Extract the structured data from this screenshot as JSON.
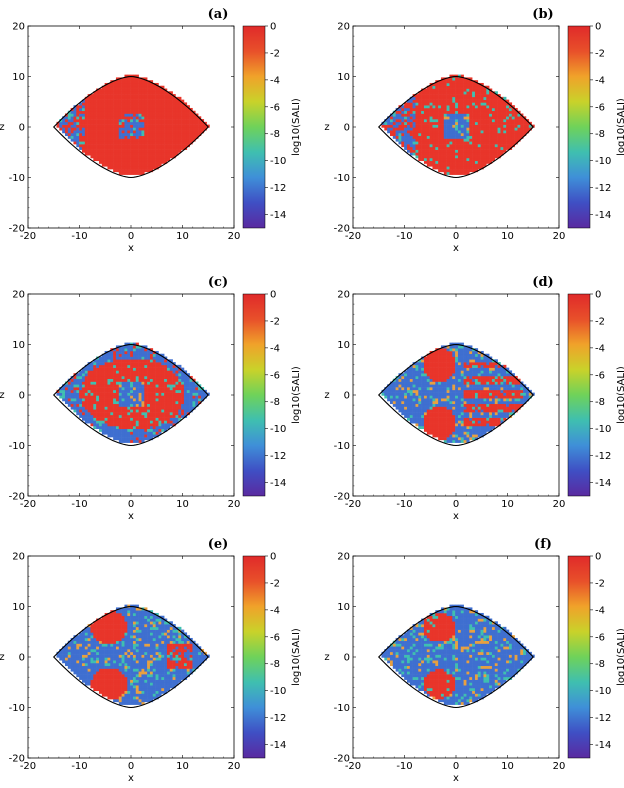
{
  "figure": {
    "colorbar": {
      "label": "log10(SALI)",
      "ticks": [
        "0",
        "-2",
        "-4",
        "-6",
        "-8",
        "-10",
        "-12",
        "-14"
      ],
      "tick_values": [
        0,
        -2,
        -4,
        -6,
        -8,
        -10,
        -12,
        -14
      ],
      "range": [
        -15,
        0
      ],
      "colors": [
        "#5a2aa0",
        "#3f4fc4",
        "#3f8fd8",
        "#3fbfb0",
        "#6fd25a",
        "#c9d22a",
        "#f0a22a",
        "#e8502a",
        "#e02a2a"
      ]
    },
    "colors": {
      "chaotic": "#3f6fd0",
      "regular": "#e8352a",
      "sticky": "#e8a040",
      "frame": "#000000"
    }
  },
  "chart_data": [
    {
      "type": "heatmap",
      "panel": "(a)",
      "title": "(a)",
      "xlabel": "x",
      "ylabel": "z",
      "xlim": [
        -20,
        20
      ],
      "ylim": [
        -20,
        20
      ],
      "x_ticks": [
        "-20",
        "-10",
        "0",
        "10",
        "20"
      ],
      "y_ticks": [
        "-20",
        "-10",
        "0",
        "10",
        "20"
      ],
      "boundary": {
        "x_min": -15,
        "x_max": 15,
        "z_max": 10
      },
      "colorbar_label": "log10(SALI)",
      "colorbar_range": [
        -15,
        0
      ],
      "regular_fraction": "mostly regular (red); chaotic (blue) near x≈-12 and center"
    },
    {
      "type": "heatmap",
      "panel": "(b)",
      "title": "(b)",
      "xlabel": "x",
      "ylabel": "z",
      "xlim": [
        -20,
        20
      ],
      "ylim": [
        -20,
        20
      ],
      "x_ticks": [
        "-20",
        "-10",
        "0",
        "10",
        "20"
      ],
      "y_ticks": [
        "-20",
        "-10",
        "0",
        "10",
        "20"
      ],
      "boundary": {
        "x_min": -15,
        "x_max": 15,
        "z_max": 10
      },
      "colorbar_label": "log10(SALI)",
      "colorbar_range": [
        -15,
        0
      ],
      "regular_fraction": "mostly regular; wider chaotic band on left"
    },
    {
      "type": "heatmap",
      "panel": "(c)",
      "title": "(c)",
      "xlabel": "x",
      "ylabel": "z",
      "xlim": [
        -20,
        20
      ],
      "ylim": [
        -20,
        20
      ],
      "x_ticks": [
        "-20",
        "-10",
        "0",
        "10",
        "20"
      ],
      "y_ticks": [
        "-20",
        "-10",
        "0",
        "10",
        "20"
      ],
      "boundary": {
        "x_min": -15,
        "x_max": 15,
        "z_max": 10
      },
      "colorbar_label": "log10(SALI)",
      "colorbar_range": [
        -15,
        0
      ],
      "regular_fraction": "regular core, chaotic outer ring"
    },
    {
      "type": "heatmap",
      "panel": "(d)",
      "title": "(d)",
      "xlabel": "x",
      "ylabel": "z",
      "xlim": [
        -20,
        20
      ],
      "ylim": [
        -20,
        20
      ],
      "x_ticks": [
        "-20",
        "-10",
        "0",
        "10",
        "20"
      ],
      "y_ticks": [
        "-20",
        "-10",
        "0",
        "10",
        "20"
      ],
      "boundary": {
        "x_min": -15,
        "x_max": 15,
        "z_max": 10
      },
      "colorbar_label": "log10(SALI)",
      "colorbar_range": [
        -15,
        0
      ],
      "regular_fraction": "mostly chaotic with regular islands"
    },
    {
      "type": "heatmap",
      "panel": "(e)",
      "title": "(e)",
      "xlabel": "x",
      "ylabel": "z",
      "xlim": [
        -20,
        20
      ],
      "ylim": [
        -20,
        20
      ],
      "x_ticks": [
        "-20",
        "-10",
        "0",
        "10",
        "20"
      ],
      "y_ticks": [
        "-20",
        "-10",
        "0",
        "10",
        "20"
      ],
      "boundary": {
        "x_min": -15,
        "x_max": 15,
        "z_max": 10
      },
      "colorbar_label": "log10(SALI)",
      "colorbar_range": [
        -15,
        0
      ],
      "regular_fraction": "chaotic with small regular islands"
    },
    {
      "type": "heatmap",
      "panel": "(f)",
      "title": "(f)",
      "xlabel": "x",
      "ylabel": "z",
      "xlim": [
        -20,
        20
      ],
      "ylim": [
        -20,
        20
      ],
      "x_ticks": [
        "-20",
        "-10",
        "0",
        "10",
        "20"
      ],
      "y_ticks": [
        "-20",
        "-10",
        "0",
        "10",
        "20"
      ],
      "boundary": {
        "x_min": -15,
        "x_max": 15,
        "z_max": 10
      },
      "colorbar_label": "log10(SALI)",
      "colorbar_range": [
        -15,
        0
      ],
      "regular_fraction": "predominantly chaotic, two regular islands"
    }
  ]
}
